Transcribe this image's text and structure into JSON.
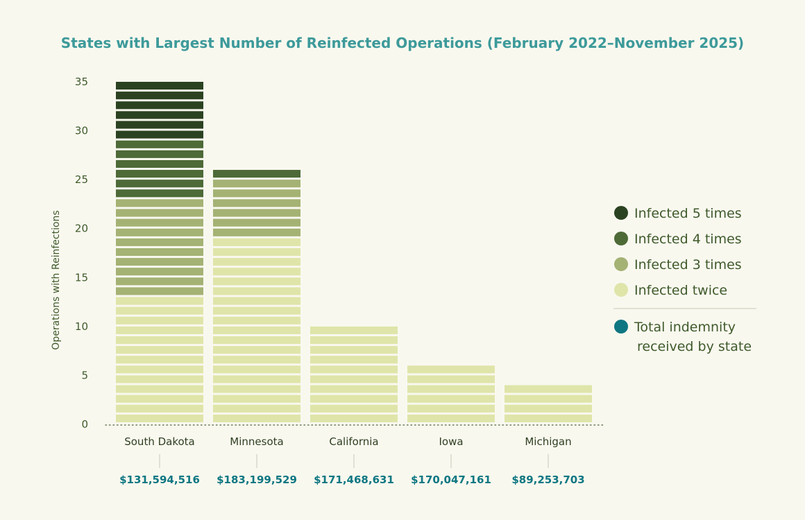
{
  "chart_data": {
    "type": "bar",
    "stacked": true,
    "title": "States with Largest Number of Reinfected Operations (February 2022–November 2025)",
    "ylabel": "Operations with Reinfections",
    "xlabel": "",
    "ylim": [
      0,
      35
    ],
    "yticks": [
      0,
      5,
      10,
      15,
      20,
      25,
      30,
      35
    ],
    "categories": [
      "South Dakota",
      "Minnesota",
      "California",
      "Iowa",
      "Michigan"
    ],
    "series": [
      {
        "name": "Infected twice",
        "color": "#dfe5a9",
        "values": [
          13,
          19,
          10,
          6,
          4
        ]
      },
      {
        "name": "Infected 3 times",
        "color": "#a4b274",
        "values": [
          10,
          6,
          0,
          0,
          0
        ]
      },
      {
        "name": "Infected 4 times",
        "color": "#4d6a37",
        "values": [
          6,
          1,
          0,
          0,
          0
        ]
      },
      {
        "name": "Infected 5 times",
        "color": "#2b4221",
        "values": [
          6,
          0,
          0,
          0,
          0
        ]
      }
    ],
    "legend_order": [
      "Infected 5 times",
      "Infected 4 times",
      "Infected 3 times",
      "Infected twice"
    ],
    "indemnity": {
      "label_line1": "Total indemnity",
      "label_line2": "received by state",
      "color": "#0e7782",
      "values": [
        "$131,594,516",
        "$183,199,529",
        "$171,468,631",
        "$170,047,161",
        "$89,253,703"
      ]
    },
    "legend_position": "right",
    "grid": false
  }
}
